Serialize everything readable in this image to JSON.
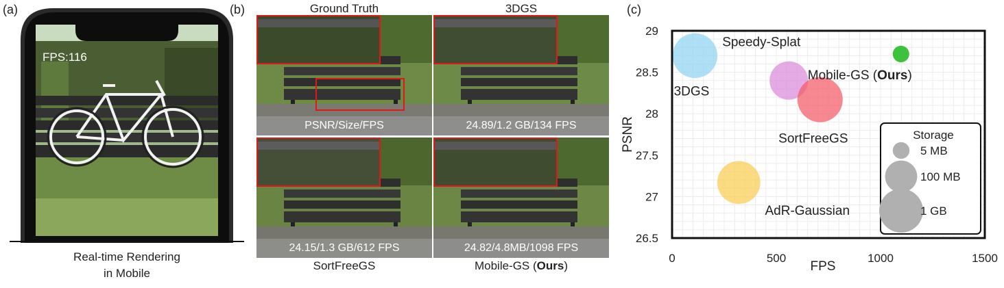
{
  "panels": {
    "a": {
      "label": "(a)",
      "fps_overlay": "FPS:116",
      "caption_line1": "Real-time Rendering",
      "caption_line2": "in Mobile"
    },
    "b": {
      "label": "(b)",
      "tiles": [
        {
          "title": "Ground Truth",
          "band": "PSNR/Size/FPS"
        },
        {
          "title": "3DGS",
          "band": "24.89/1.2 GB/134 FPS"
        },
        {
          "title": "SortFreeGS",
          "band": "24.15/1.3 GB/612 FPS"
        },
        {
          "title_prefix": "Mobile-GS (",
          "title_bold": "Ours",
          "title_suffix": ")",
          "band": "24.82/4.8MB/1098 FPS"
        }
      ]
    },
    "c": {
      "label": "(c)"
    }
  },
  "colors": {
    "zoom_box": "#e01818",
    "threedgs": "#8fd3f0",
    "speedy": "#d98ad9",
    "sortfree": "#f45a66",
    "adr": "#f8cd52",
    "mobilegs": "#3cc23c",
    "legend_bubble": "#b0b0b0"
  },
  "chart_data": {
    "type": "scatter",
    "xlabel": "FPS",
    "ylabel": "PSNR",
    "xlim": [
      0,
      1500
    ],
    "ylim": [
      26.5,
      29
    ],
    "xticks": [
      "0",
      "500",
      "1000",
      "1500"
    ],
    "yticks": [
      "26.5",
      "27",
      "27.5",
      "28",
      "28.5",
      "29"
    ],
    "grid": true,
    "points": [
      {
        "label": "3DGS",
        "fps": 110,
        "psnr": 28.7,
        "storage_mb": 1200,
        "color": "#8fd3f0"
      },
      {
        "label": "Speedy-Splat",
        "fps": 560,
        "psnr": 28.4,
        "storage_mb": 350,
        "color": "#d98ad9"
      },
      {
        "label": "SortFreeGS",
        "fps": 710,
        "psnr": 28.17,
        "storage_mb": 1300,
        "color": "#f45a66"
      },
      {
        "label": "AdR-Gaussian",
        "fps": 320,
        "psnr": 27.17,
        "storage_mb": 850,
        "color": "#f8cd52"
      },
      {
        "label_prefix": "Mobile-GS (",
        "label_bold": "Ours",
        "label_suffix": ")",
        "fps": 1098,
        "psnr": 28.72,
        "storage_mb": 4.8,
        "color": "#3cc23c"
      }
    ],
    "legend": {
      "title": "Storage",
      "placement": "bottom-right",
      "entries": [
        {
          "label": "5 MB",
          "storage_mb": 5
        },
        {
          "label": "100 MB",
          "storage_mb": 100
        },
        {
          "label": "1 GB",
          "storage_mb": 1000
        }
      ]
    }
  }
}
